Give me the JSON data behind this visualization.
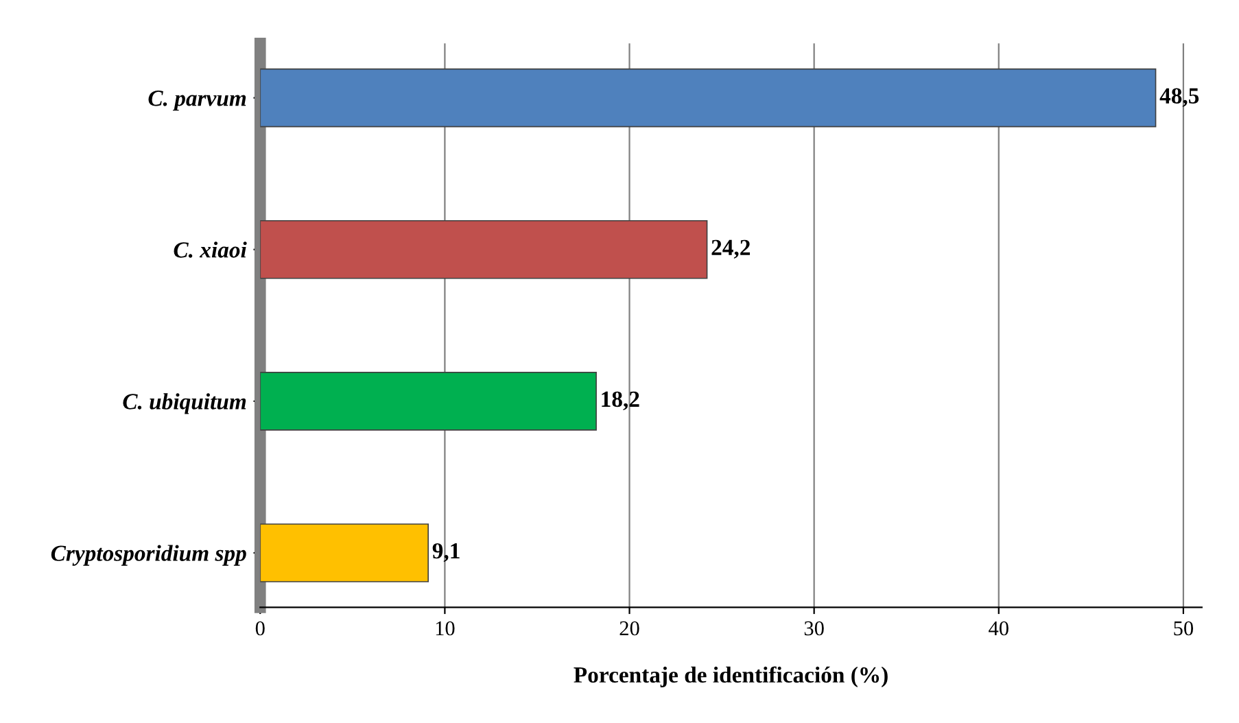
{
  "chart_data": {
    "type": "bar",
    "orientation": "horizontal",
    "xlabel": "Porcentaje de identificación (%)",
    "categories": [
      "C. parvum",
      "C. xiaoi",
      "C. ubiquitum",
      "Cryptosporidium spp"
    ],
    "values": [
      48.5,
      24.2,
      18.2,
      9.1
    ],
    "colors": [
      "#4f81bd",
      "#c0504d",
      "#00b050",
      "#ffc000"
    ],
    "value_labels": [
      "48,5",
      "24,2",
      "18,2",
      "9,1"
    ],
    "xlim": [
      0,
      51
    ],
    "xticks": [
      0,
      10,
      20,
      30,
      40,
      50
    ],
    "grid": "x"
  }
}
